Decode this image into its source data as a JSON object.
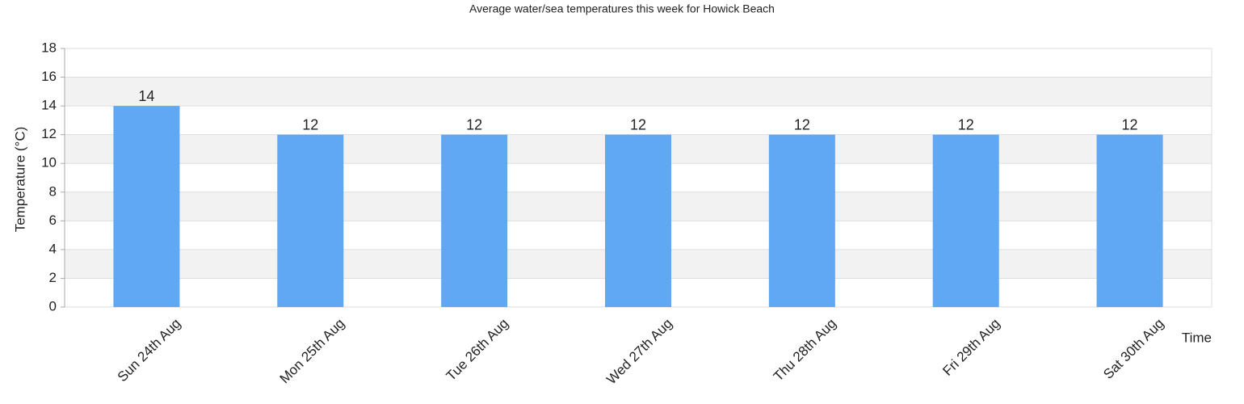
{
  "chart_data": {
    "type": "bar",
    "title": "Average water/sea temperatures this week for Howick Beach",
    "x_label": "Time",
    "y_label": "Temperature (°C)",
    "categories": [
      "Sun 24th Aug",
      "Mon 25th Aug",
      "Tue 26th Aug",
      "Wed 27th Aug",
      "Thu 28th Aug",
      "Fri 29th Aug",
      "Sat 30th Aug"
    ],
    "values": [
      14,
      12,
      12,
      12,
      12,
      12,
      12
    ],
    "color": "#60a7f4",
    "ylim": [
      0,
      18
    ],
    "yticks": [
      0,
      2,
      4,
      6,
      8,
      10,
      12,
      14,
      16,
      18
    ],
    "grid": true
  }
}
